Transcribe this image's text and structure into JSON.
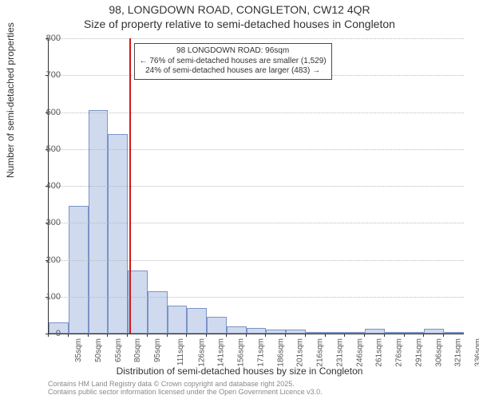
{
  "title": {
    "line1": "98, LONGDOWN ROAD, CONGLETON, CW12 4QR",
    "line2": "Size of property relative to semi-detached houses in Congleton"
  },
  "axes": {
    "ylabel": "Number of semi-detached properties",
    "xlabel": "Distribution of semi-detached houses by size in Congleton",
    "ylim": [
      0,
      800
    ],
    "ytick_step": 100,
    "yticks": [
      0,
      100,
      200,
      300,
      400,
      500,
      600,
      700,
      800
    ],
    "grid_color": "#b9b9b9",
    "axis_color": "#333333",
    "tick_fontsize": 11,
    "label_fontsize": 12
  },
  "histogram": {
    "type": "histogram",
    "bar_fill": "#cfdaef",
    "bar_stroke": "#7b93c4",
    "background_color": "#ffffff",
    "categories": [
      "35sqm",
      "50sqm",
      "65sqm",
      "80sqm",
      "95sqm",
      "111sqm",
      "126sqm",
      "141sqm",
      "156sqm",
      "171sqm",
      "186sqm",
      "201sqm",
      "216sqm",
      "231sqm",
      "246sqm",
      "261sqm",
      "276sqm",
      "291sqm",
      "306sqm",
      "321sqm",
      "336sqm"
    ],
    "values": [
      30,
      345,
      605,
      540,
      170,
      115,
      75,
      70,
      45,
      20,
      15,
      10,
      10,
      5,
      3,
      2,
      12,
      2,
      2,
      12,
      2
    ]
  },
  "marker": {
    "value_sqm": 96,
    "color": "#d11919",
    "callout": {
      "line1": "98 LONGDOWN ROAD: 96sqm",
      "line2": "← 76% of semi-detached houses are smaller (1,529)",
      "line3": "24% of semi-detached houses are larger (483) →",
      "border_color": "#4a4a4a",
      "background": "#ffffff",
      "fontsize": 10
    }
  },
  "footer": {
    "line1": "Contains HM Land Registry data © Crown copyright and database right 2025.",
    "line2": "Contains public sector information licensed under the Open Government Licence v3.0.",
    "color": "#8a8a8a",
    "fontsize": 9
  },
  "title_style": {
    "fontsize": 14,
    "color": "#333333"
  }
}
